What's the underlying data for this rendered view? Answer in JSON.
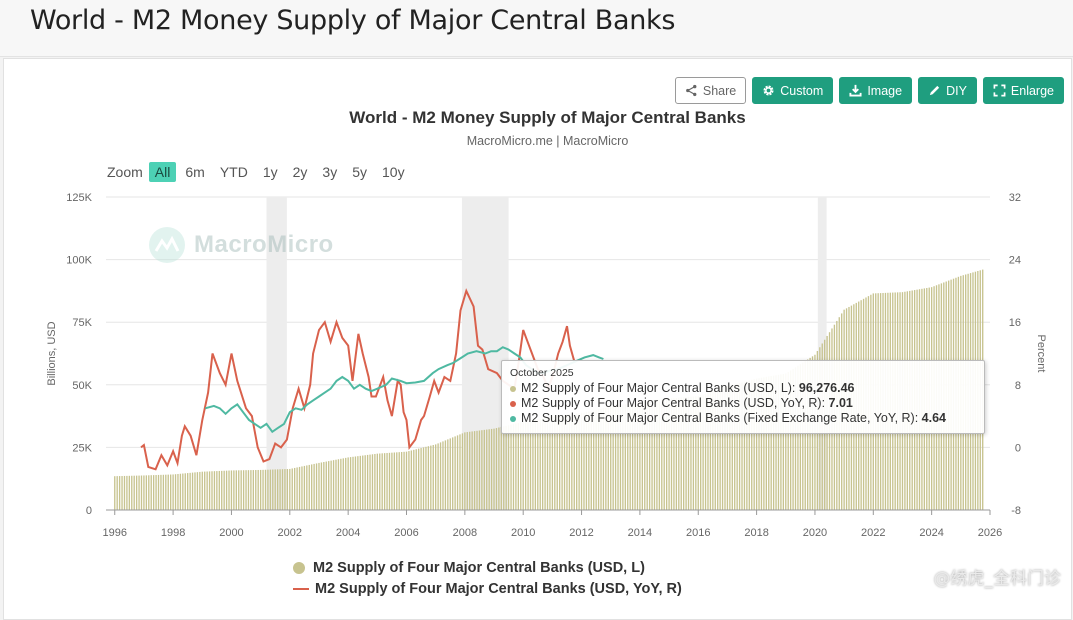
{
  "page": {
    "title": "World - M2 Money Supply of Major Central Banks"
  },
  "toolbar": {
    "share_label": "Share",
    "custom_label": "Custom",
    "image_label": "Image",
    "diy_label": "DIY",
    "enlarge_label": "Enlarge"
  },
  "zoom": {
    "label": "Zoom",
    "options": [
      "All",
      "6m",
      "YTD",
      "1y",
      "2y",
      "3y",
      "5y",
      "10y"
    ],
    "selected": "All"
  },
  "watermark": "MacroMicro",
  "tooltip": {
    "date": "October 2025",
    "rows": [
      {
        "label": "M2 Supply of Four Major Central Banks (USD, L): ",
        "value": "96,276.46"
      },
      {
        "label": "M2 Supply of Four Major Central Banks (USD, YoY, R): ",
        "value": "7.01"
      },
      {
        "label": "M2 Supply of Four Major Central Banks (Fixed Exchange Rate, YoY, R): ",
        "value": "4.64"
      }
    ]
  },
  "legend": [
    {
      "label": "M2 Supply of Four Major Central Banks (USD, L)"
    },
    {
      "label": "M2 Supply of Four Major Central Banks (USD, YoY, R)"
    }
  ],
  "corner_mark": "@绣虎_全科门诊",
  "colors": {
    "bar": "#c7c38f",
    "yoy": "#d9614c",
    "fixed": "#4fb9a2",
    "accent": "#1f9e7f"
  },
  "chart_data": {
    "type": "bar+line",
    "title": "World - M2 Money Supply of Major Central Banks",
    "subtitle": "MacroMicro.me | MacroMicro",
    "xlabel": "",
    "ylabel_left": "Billions, USD",
    "ylabel_right": "Percent",
    "x_ticks": [
      "1996",
      "1998",
      "2000",
      "2002",
      "2004",
      "2006",
      "2008",
      "2010",
      "2012",
      "2014",
      "2016",
      "2018",
      "2020",
      "2022",
      "2024",
      "2026"
    ],
    "y_left_ticks": [
      "0",
      "25K",
      "50K",
      "75K",
      "100K",
      "125K"
    ],
    "y_right_ticks": [
      "-8",
      "0",
      "8",
      "16",
      "24",
      "32"
    ],
    "xlim": [
      1995.7,
      2026.0
    ],
    "ylim_left": [
      0,
      125000
    ],
    "ylim_right": [
      -8,
      32
    ],
    "recession_bands": [
      [
        2001.2,
        2001.9
      ],
      [
        2007.9,
        2009.5
      ],
      [
        2020.1,
        2020.4
      ]
    ],
    "tooltip_date": "October 2025",
    "series": [
      {
        "name": "M2 Supply of Four Major Central Banks (USD, L)",
        "type": "bar",
        "axis": "left",
        "points": [
          [
            1996.0,
            13500
          ],
          [
            1997.0,
            13800
          ],
          [
            1998.0,
            14200
          ],
          [
            1999.0,
            15300
          ],
          [
            2000.0,
            15800
          ],
          [
            2001.0,
            16000
          ],
          [
            2002.0,
            16400
          ],
          [
            2003.0,
            18800
          ],
          [
            2004.0,
            21000
          ],
          [
            2005.0,
            22500
          ],
          [
            2006.0,
            23300
          ],
          [
            2007.0,
            26200
          ],
          [
            2008.0,
            31000
          ],
          [
            2009.0,
            32500
          ],
          [
            2010.0,
            35200
          ],
          [
            2011.0,
            37500
          ],
          [
            2012.0,
            38800
          ],
          [
            2013.0,
            41200
          ],
          [
            2014.0,
            43300
          ],
          [
            2015.0,
            44500
          ],
          [
            2016.0,
            45500
          ],
          [
            2017.0,
            49500
          ],
          [
            2018.0,
            52500
          ],
          [
            2019.0,
            54500
          ],
          [
            2020.0,
            62000
          ],
          [
            2021.0,
            80000
          ],
          [
            2022.0,
            86500
          ],
          [
            2023.0,
            87000
          ],
          [
            2024.0,
            89000
          ],
          [
            2025.0,
            93500
          ],
          [
            2025.83,
            96276.46
          ]
        ]
      },
      {
        "name": "M2 Supply of Four Major Central Banks (USD, YoY, R)",
        "type": "line",
        "axis": "right",
        "points": [
          [
            1996.9,
            0
          ],
          [
            1997.0,
            0.3
          ],
          [
            1997.15,
            -2.5
          ],
          [
            1997.4,
            -2.8
          ],
          [
            1997.6,
            -1.0
          ],
          [
            1997.8,
            -2.3
          ],
          [
            1998.0,
            -0.5
          ],
          [
            1998.15,
            -2.0
          ],
          [
            1998.3,
            1.5
          ],
          [
            1998.4,
            2.7
          ],
          [
            1998.6,
            1.5
          ],
          [
            1998.8,
            -1.0
          ],
          [
            1999.0,
            3.5
          ],
          [
            1999.2,
            7.0
          ],
          [
            1999.35,
            12.0
          ],
          [
            1999.6,
            9.5
          ],
          [
            1999.8,
            8.0
          ],
          [
            2000.0,
            12.0
          ],
          [
            2000.2,
            8.5
          ],
          [
            2000.5,
            5.0
          ],
          [
            2000.7,
            4.0
          ],
          [
            2000.9,
            0
          ],
          [
            2001.1,
            -1.8
          ],
          [
            2001.3,
            -1.5
          ],
          [
            2001.5,
            0.5
          ],
          [
            2001.7,
            0
          ],
          [
            2001.9,
            1.0
          ],
          [
            2002.1,
            5.0
          ],
          [
            2002.3,
            7.5
          ],
          [
            2002.5,
            5.0
          ],
          [
            2002.7,
            8.0
          ],
          [
            2002.8,
            12.0
          ],
          [
            2003.0,
            15.0
          ],
          [
            2003.2,
            16.0
          ],
          [
            2003.4,
            13.5
          ],
          [
            2003.6,
            16.0
          ],
          [
            2003.8,
            14.0
          ],
          [
            2004.0,
            13.0
          ],
          [
            2004.15,
            8.5
          ],
          [
            2004.35,
            14.5
          ],
          [
            2004.5,
            12.0
          ],
          [
            2004.7,
            9.0
          ],
          [
            2004.8,
            6.5
          ],
          [
            2004.95,
            6.5
          ],
          [
            2005.2,
            9.0
          ],
          [
            2005.35,
            6.0
          ],
          [
            2005.5,
            4.0
          ],
          [
            2005.7,
            8.5
          ],
          [
            2005.8,
            8.0
          ],
          [
            2005.9,
            4.5
          ],
          [
            2006.0,
            3.5
          ],
          [
            2006.1,
            0
          ],
          [
            2006.3,
            1.0
          ],
          [
            2006.5,
            3.5
          ],
          [
            2006.6,
            4.0
          ],
          [
            2006.8,
            6.5
          ],
          [
            2006.95,
            8.5
          ],
          [
            2007.1,
            7.0
          ],
          [
            2007.3,
            9.0
          ],
          [
            2007.5,
            8.5
          ],
          [
            2007.7,
            12.0
          ],
          [
            2007.85,
            17.5
          ],
          [
            2008.05,
            20.0
          ],
          [
            2008.3,
            18.0
          ],
          [
            2008.45,
            13.0
          ],
          [
            2008.6,
            12.5
          ],
          [
            2008.8,
            10.0
          ],
          [
            2009.1,
            9.5
          ],
          [
            2009.3,
            8.5
          ],
          [
            2009.5,
            8.0
          ],
          [
            2009.7,
            7.5
          ],
          [
            2009.85,
            11.0
          ],
          [
            2010.0,
            15.0
          ],
          [
            2010.15,
            13.5
          ],
          [
            2010.3,
            12.0
          ],
          [
            2010.5,
            10.0
          ],
          [
            2010.7,
            9.0
          ],
          [
            2010.85,
            7.5
          ],
          [
            2011.0,
            9.0
          ],
          [
            2011.2,
            12.0
          ],
          [
            2011.35,
            13.5
          ],
          [
            2011.5,
            15.5
          ],
          [
            2011.6,
            13.0
          ],
          [
            2011.75,
            11.0
          ]
        ]
      },
      {
        "name": "M2 Supply of Four Major Central Banks (Fixed Exchange Rate, YoY, R)",
        "type": "line",
        "axis": "right",
        "points": [
          [
            1999.1,
            5.0
          ],
          [
            1999.4,
            5.3
          ],
          [
            1999.6,
            5.0
          ],
          [
            1999.8,
            4.3
          ],
          [
            2000.0,
            5.0
          ],
          [
            2000.2,
            5.5
          ],
          [
            2000.4,
            4.5
          ],
          [
            2000.6,
            3.5
          ],
          [
            2000.8,
            3.0
          ],
          [
            2001.0,
            2.5
          ],
          [
            2001.2,
            3.0
          ],
          [
            2001.4,
            2.0
          ],
          [
            2001.6,
            2.5
          ],
          [
            2001.8,
            3.0
          ],
          [
            2002.0,
            4.5
          ],
          [
            2002.2,
            5.0
          ],
          [
            2002.4,
            4.8
          ],
          [
            2002.6,
            5.5
          ],
          [
            2002.8,
            6.0
          ],
          [
            2003.0,
            6.5
          ],
          [
            2003.2,
            7.0
          ],
          [
            2003.4,
            7.5
          ],
          [
            2003.6,
            8.5
          ],
          [
            2003.8,
            9.0
          ],
          [
            2004.0,
            8.5
          ],
          [
            2004.2,
            7.5
          ],
          [
            2004.4,
            8.0
          ],
          [
            2004.6,
            7.5
          ],
          [
            2004.8,
            7.2
          ],
          [
            2005.0,
            7.5
          ],
          [
            2005.3,
            8.0
          ],
          [
            2005.5,
            8.8
          ],
          [
            2005.8,
            8.5
          ],
          [
            2006.0,
            8.2
          ],
          [
            2006.3,
            8.3
          ],
          [
            2006.6,
            8.5
          ],
          [
            2006.9,
            9.5
          ],
          [
            2007.1,
            10.0
          ],
          [
            2007.4,
            10.5
          ],
          [
            2007.6,
            10.8
          ],
          [
            2007.9,
            11.5
          ],
          [
            2008.1,
            12.0
          ],
          [
            2008.4,
            12.3
          ],
          [
            2008.7,
            12.0
          ],
          [
            2008.9,
            12.3
          ],
          [
            2009.1,
            12.3
          ],
          [
            2009.3,
            12.8
          ],
          [
            2009.5,
            12.5
          ],
          [
            2009.7,
            12.0
          ],
          [
            2009.9,
            11.5
          ],
          [
            2010.1,
            10.5
          ],
          [
            2010.3,
            10.0
          ],
          [
            2010.5,
            9.5
          ],
          [
            2010.7,
            9.5
          ],
          [
            2010.9,
            9.8
          ],
          [
            2011.2,
            10.0
          ],
          [
            2011.5,
            10.5
          ],
          [
            2011.8,
            11.0
          ],
          [
            2012.1,
            11.5
          ],
          [
            2012.4,
            11.8
          ],
          [
            2012.6,
            11.5
          ],
          [
            2012.75,
            11.3
          ]
        ]
      }
    ]
  }
}
